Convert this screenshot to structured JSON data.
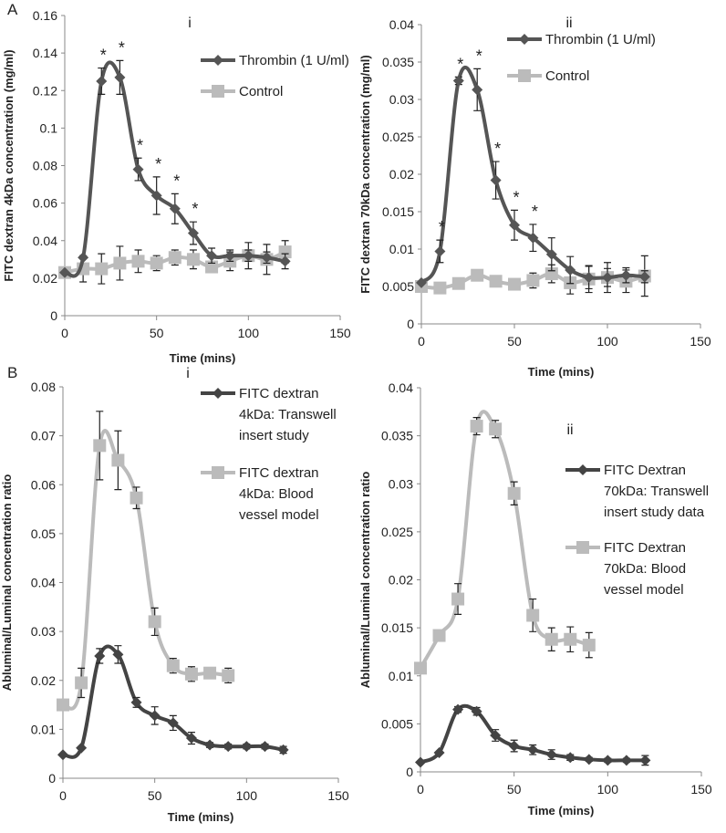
{
  "panel_labels": [
    "A",
    "B"
  ],
  "chart_data": [
    {
      "type": "line",
      "panel": "A",
      "title": "i",
      "xlabel": "Time (mins)",
      "ylabel": "FITC dextran 4kDa concentration (mg/ml)",
      "xlim": [
        0,
        150
      ],
      "xticks": [
        0,
        50,
        100,
        150
      ],
      "ylim": [
        0,
        0.16
      ],
      "yticks": [
        "0",
        "0.02",
        "0.04",
        "0.06",
        "0.08",
        "0.1",
        "0.12",
        "0.14",
        "0.16"
      ],
      "legend": "top-right",
      "series": [
        {
          "name": "Thrombin (1 U/ml)",
          "marker": "diamond",
          "color": "#555555",
          "x": [
            0,
            10,
            20,
            30,
            40,
            50,
            60,
            70,
            80,
            90,
            100,
            110,
            120
          ],
          "y": [
            0.023,
            0.031,
            0.125,
            0.127,
            0.078,
            0.064,
            0.057,
            0.044,
            0.032,
            0.032,
            0.032,
            0.031,
            0.029
          ],
          "err": [
            0,
            0,
            0.007,
            0.009,
            0.006,
            0.01,
            0.008,
            0.006,
            0.004,
            0.003,
            0.003,
            0.003,
            0.004
          ],
          "annotations": [
            "",
            "",
            "*",
            "*",
            "*",
            "*",
            "*",
            "*",
            "",
            "",
            "",
            "",
            ""
          ]
        },
        {
          "name": "Control",
          "marker": "square",
          "color": "#bbbbbb",
          "x": [
            0,
            10,
            20,
            30,
            40,
            50,
            60,
            70,
            80,
            90,
            100,
            110,
            120
          ],
          "y": [
            0.023,
            0.025,
            0.025,
            0.028,
            0.029,
            0.028,
            0.031,
            0.03,
            0.026,
            0.029,
            0.032,
            0.03,
            0.034
          ],
          "err": [
            0.003,
            0.007,
            0.008,
            0.009,
            0.006,
            0.004,
            0.004,
            0.005,
            0.003,
            0.005,
            0.007,
            0.008,
            0.006
          ]
        }
      ]
    },
    {
      "type": "line",
      "panel": "A",
      "title": "ii",
      "xlabel": "Time (mins)",
      "ylabel": "FITC dextran 70kDa concentration (mg/ml)",
      "xlim": [
        0,
        150
      ],
      "xticks": [
        0,
        50,
        100,
        150
      ],
      "ylim": [
        0,
        0.04
      ],
      "yticks": [
        "0",
        "0.005",
        "0.01",
        "0.015",
        "0.02",
        "0.025",
        "0.03",
        "0.035",
        "0.04"
      ],
      "legend": "top-right",
      "series": [
        {
          "name": "Thrombin (1 U/ml)",
          "marker": "diamond",
          "color": "#555555",
          "x": [
            0,
            10,
            20,
            30,
            40,
            50,
            60,
            70,
            80,
            90,
            100,
            110,
            120
          ],
          "y": [
            0.0055,
            0.0097,
            0.0325,
            0.0313,
            0.0192,
            0.0132,
            0.0115,
            0.0093,
            0.0072,
            0.0062,
            0.0062,
            0.0065,
            0.0063
          ],
          "err": [
            0,
            0.0015,
            0.0005,
            0.0028,
            0.0025,
            0.002,
            0.0018,
            0.0022,
            0.0018,
            0.0015,
            0.0012,
            0.001,
            0.0008
          ],
          "annotations": [
            "",
            "*",
            "*",
            "*",
            "*",
            "*",
            "*",
            "",
            "",
            "",
            "",
            "",
            ""
          ]
        },
        {
          "name": "Control",
          "marker": "square",
          "color": "#bbbbbb",
          "x": [
            0,
            10,
            20,
            30,
            40,
            50,
            60,
            70,
            80,
            90,
            100,
            110,
            120
          ],
          "y": [
            0.005,
            0.0048,
            0.0054,
            0.0065,
            0.0057,
            0.0053,
            0.0058,
            0.0067,
            0.0055,
            0.006,
            0.0062,
            0.0057,
            0.0064
          ],
          "err": [
            0.0005,
            0.0004,
            0.0005,
            0.0006,
            0.0005,
            0.0005,
            0.001,
            0.0012,
            0.0015,
            0.0018,
            0.002,
            0.0015,
            0.0027
          ]
        }
      ]
    },
    {
      "type": "line",
      "panel": "B",
      "title": "i",
      "xlabel": "Time (mins)",
      "ylabel": "Abluminal/Luminal concentration ratio",
      "xlim": [
        0,
        150
      ],
      "xticks": [
        0,
        50,
        100,
        150
      ],
      "ylim": [
        0,
        0.08
      ],
      "yticks": [
        "0",
        "0.01",
        "0.02",
        "0.03",
        "0.04",
        "0.05",
        "0.06",
        "0.07",
        "0.08"
      ],
      "legend": "top-right",
      "series": [
        {
          "name": "FITC dextran 4kDa: Transwell insert study",
          "legend_lines": [
            "FITC dextran",
            "4kDa: Transwell",
            "insert study"
          ],
          "marker": "diamond",
          "color": "#444444",
          "x": [
            0,
            10,
            20,
            30,
            40,
            50,
            60,
            70,
            80,
            90,
            100,
            110,
            120
          ],
          "y": [
            0.0048,
            0.0062,
            0.025,
            0.0253,
            0.0155,
            0.0128,
            0.0113,
            0.0082,
            0.0068,
            0.0065,
            0.0065,
            0.0065,
            0.0058
          ],
          "err": [
            0,
            0,
            0.0015,
            0.0018,
            0.001,
            0.0018,
            0.0015,
            0.0012,
            0.0005,
            0.0005,
            0.0005,
            0.0005,
            0.0007
          ]
        },
        {
          "name": "FITC dextran 4kDa: Blood vessel model",
          "legend_lines": [
            "FITC dextran",
            "4kDa: Blood",
            "vessel model"
          ],
          "marker": "square",
          "color": "#bbbbbb",
          "x": [
            0,
            10,
            20,
            30,
            40,
            50,
            60,
            70,
            80,
            90
          ],
          "y": [
            0.015,
            0.0195,
            0.068,
            0.065,
            0.0573,
            0.032,
            0.023,
            0.0213,
            0.0215,
            0.021
          ],
          "err": [
            0,
            0.003,
            0.007,
            0.006,
            0.0022,
            0.0028,
            0.0015,
            0.0015,
            0.0008,
            0.0015
          ]
        }
      ]
    },
    {
      "type": "line",
      "panel": "B",
      "title": "ii",
      "xlabel": "Time (mins)",
      "ylabel": "Abluminal/Luminal concentration ratio",
      "xlim": [
        0,
        150
      ],
      "xticks": [
        0,
        50,
        100,
        150
      ],
      "ylim": [
        0,
        0.04
      ],
      "yticks": [
        "0",
        "0.005",
        "0.01",
        "0.015",
        "0.02",
        "0.025",
        "0.03",
        "0.035",
        "0.04"
      ],
      "legend": "top-right",
      "series": [
        {
          "name": "FITC Dextran 70kDa: Transwell insert study data",
          "legend_lines": [
            "FITC Dextran",
            "70kDa: Transwell",
            "insert study data"
          ],
          "marker": "diamond",
          "color": "#444444",
          "x": [
            0,
            10,
            20,
            30,
            40,
            50,
            60,
            70,
            80,
            90,
            100,
            110,
            120
          ],
          "y": [
            0.001,
            0.002,
            0.0065,
            0.0063,
            0.0038,
            0.0027,
            0.0023,
            0.0018,
            0.0015,
            0.0013,
            0.0012,
            0.0012,
            0.0012
          ],
          "err": [
            0,
            0,
            0.0003,
            0.0004,
            0.0006,
            0.0006,
            0.0005,
            0.0005,
            0.0003,
            0.0002,
            0.0002,
            0.0002,
            0.0005
          ]
        },
        {
          "name": "FITC Dextran 70kDa: Blood vessel model",
          "legend_lines": [
            "FITC Dextran",
            "70kDa: Blood",
            "vessel model"
          ],
          "marker": "square",
          "color": "#bbbbbb",
          "x": [
            0,
            10,
            20,
            30,
            40,
            50,
            60,
            70,
            80,
            90
          ],
          "y": [
            0.0108,
            0.0142,
            0.018,
            0.036,
            0.0357,
            0.029,
            0.0163,
            0.0138,
            0.0138,
            0.0132
          ],
          "err": [
            0,
            0,
            0.0016,
            0.0009,
            0.0009,
            0.0012,
            0.0017,
            0.0012,
            0.0013,
            0.0013
          ]
        }
      ]
    }
  ]
}
